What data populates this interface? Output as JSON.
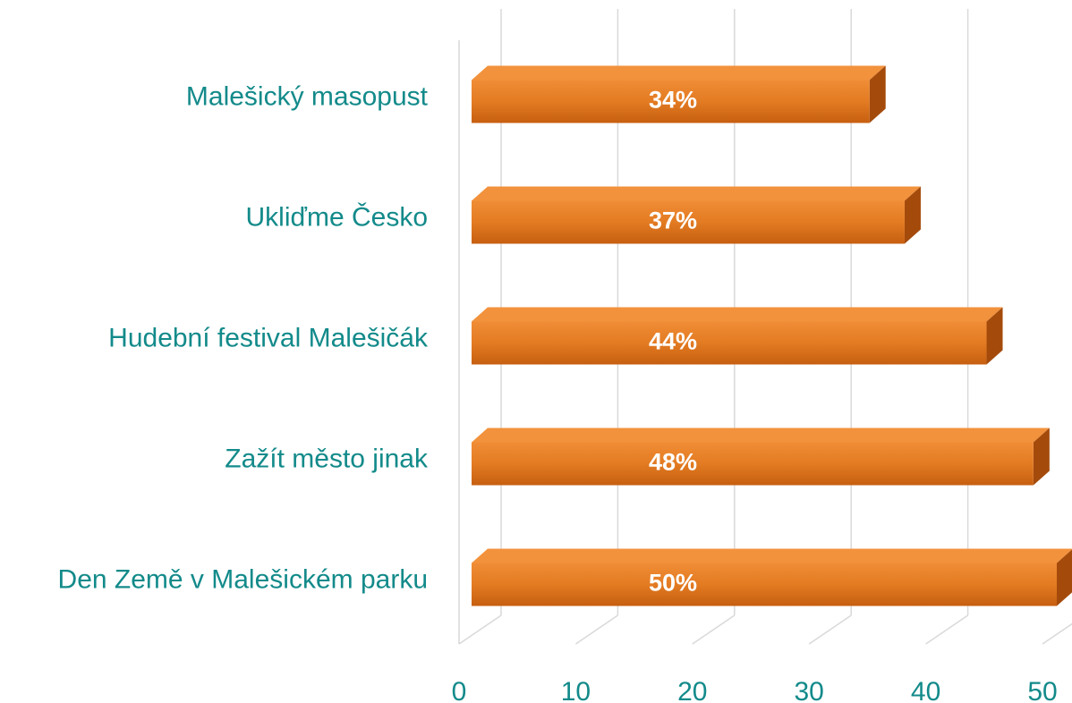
{
  "chart_data": {
    "type": "bar3d_horizontal",
    "categories": [
      "Malešický masopust",
      "Ukliďme Česko",
      "Hudební festival Malešičák",
      "Zažít město jinak",
      "Den Země v Malešickém parku"
    ],
    "values": [
      34,
      37,
      44,
      48,
      50
    ],
    "value_labels": [
      "34%",
      "37%",
      "44%",
      "48%",
      "50%"
    ],
    "color": "#e37b22",
    "xlim": [
      0,
      50
    ],
    "xticks": [
      0,
      10,
      20,
      30,
      40,
      50
    ],
    "grid": true
  }
}
